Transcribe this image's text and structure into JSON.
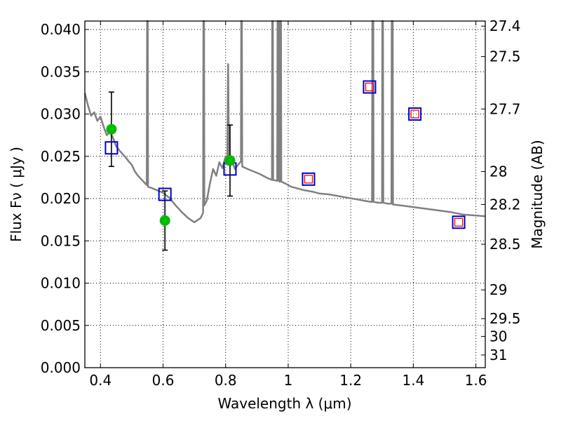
{
  "chart_data": {
    "type": "scatter",
    "xlabel": "Wavelength  λ (μm)",
    "ylabel": "Flux  Fν  ( μJy )",
    "ylabel_right": "Magnitude (AB)",
    "xlim": [
      0.35,
      1.63
    ],
    "ylim": [
      0.0,
      0.041
    ],
    "grid": true,
    "colors": {
      "spectrum": "#808080",
      "model_box": "#0000cc",
      "model_inner_box": "#ff0000",
      "photometry": "#00bb00",
      "errorbar": "#000000"
    },
    "x_ticks": [
      {
        "v": 0.4,
        "label": "0.4"
      },
      {
        "v": 0.6,
        "label": "0.6"
      },
      {
        "v": 0.8,
        "label": "0.8"
      },
      {
        "v": 1.0,
        "label": "1"
      },
      {
        "v": 1.2,
        "label": "1.2"
      },
      {
        "v": 1.4,
        "label": "1.4"
      },
      {
        "v": 1.6,
        "label": "1.6"
      }
    ],
    "y_ticks": [
      {
        "v": 0.0,
        "label": "0.000"
      },
      {
        "v": 0.005,
        "label": "0.005"
      },
      {
        "v": 0.01,
        "label": "0.010"
      },
      {
        "v": 0.015,
        "label": "0.015"
      },
      {
        "v": 0.02,
        "label": "0.020"
      },
      {
        "v": 0.025,
        "label": "0.025"
      },
      {
        "v": 0.03,
        "label": "0.030"
      },
      {
        "v": 0.035,
        "label": "0.035"
      },
      {
        "v": 0.04,
        "label": "0.040"
      }
    ],
    "magnitude_ticks": [
      {
        "label": "27.4",
        "flux": 0.0404
      },
      {
        "label": "27.5",
        "flux": 0.0368
      },
      {
        "label": "27.7",
        "flux": 0.0306
      },
      {
        "label": "28",
        "flux": 0.0232
      },
      {
        "label": "28.2",
        "flux": 0.0193
      },
      {
        "label": "28.5",
        "flux": 0.0146
      },
      {
        "label": "29",
        "flux": 0.0092
      },
      {
        "label": "29.5",
        "flux": 0.0058
      },
      {
        "label": "30",
        "flux": 0.0037
      },
      {
        "label": "31",
        "flux": 0.0015
      }
    ],
    "photometry": [
      {
        "x": 0.435,
        "y": 0.0282,
        "yerr": 0.0044
      },
      {
        "x": 0.606,
        "y": 0.0174,
        "yerr": 0.0035
      },
      {
        "x": 0.814,
        "y": 0.0245,
        "yerr": 0.0042
      }
    ],
    "model_boxes": [
      {
        "x": 0.435,
        "y": 0.026,
        "inner": false
      },
      {
        "x": 0.606,
        "y": 0.0205,
        "inner": false
      },
      {
        "x": 0.814,
        "y": 0.0235,
        "inner": false
      },
      {
        "x": 1.065,
        "y": 0.0223,
        "inner": true
      },
      {
        "x": 1.26,
        "y": 0.0332,
        "inner": true
      },
      {
        "x": 1.405,
        "y": 0.03,
        "inner": true
      },
      {
        "x": 1.545,
        "y": 0.0172,
        "inner": true
      }
    ],
    "spectrum": [
      [
        0.35,
        0.0325
      ],
      [
        0.36,
        0.031
      ],
      [
        0.37,
        0.0298
      ],
      [
        0.38,
        0.0302
      ],
      [
        0.39,
        0.0292
      ],
      [
        0.4,
        0.0297
      ],
      [
        0.41,
        0.0285
      ],
      [
        0.42,
        0.0275
      ],
      [
        0.43,
        0.0279
      ],
      [
        0.44,
        0.0272
      ],
      [
        0.45,
        0.0262
      ],
      [
        0.46,
        0.0257
      ],
      [
        0.47,
        0.0253
      ],
      [
        0.48,
        0.0249
      ],
      [
        0.49,
        0.0244
      ],
      [
        0.5,
        0.024
      ],
      [
        0.51,
        0.0232
      ],
      [
        0.52,
        0.0227
      ],
      [
        0.53,
        0.0223
      ],
      [
        0.54,
        0.0219
      ],
      [
        0.548,
        0.0216
      ],
      [
        0.549,
        0.041
      ],
      [
        0.551,
        0.041
      ],
      [
        0.552,
        0.0214
      ],
      [
        0.56,
        0.0213
      ],
      [
        0.58,
        0.021
      ],
      [
        0.6,
        0.0207
      ],
      [
        0.62,
        0.0201
      ],
      [
        0.64,
        0.0192
      ],
      [
        0.66,
        0.0184
      ],
      [
        0.68,
        0.0177
      ],
      [
        0.7,
        0.0172
      ],
      [
        0.72,
        0.0177
      ],
      [
        0.728,
        0.0183
      ],
      [
        0.729,
        0.041
      ],
      [
        0.731,
        0.041
      ],
      [
        0.732,
        0.0192
      ],
      [
        0.74,
        0.0198
      ],
      [
        0.75,
        0.0218
      ],
      [
        0.76,
        0.0235
      ],
      [
        0.77,
        0.0227
      ],
      [
        0.78,
        0.0243
      ],
      [
        0.79,
        0.0236
      ],
      [
        0.8,
        0.025
      ],
      [
        0.805,
        0.024
      ],
      [
        0.808,
        0.0359
      ],
      [
        0.811,
        0.024
      ],
      [
        0.82,
        0.0245
      ],
      [
        0.83,
        0.0235
      ],
      [
        0.84,
        0.024
      ],
      [
        0.849,
        0.0244
      ],
      [
        0.85,
        0.041
      ],
      [
        0.852,
        0.041
      ],
      [
        0.853,
        0.0238
      ],
      [
        0.87,
        0.0235
      ],
      [
        0.89,
        0.0232
      ],
      [
        0.91,
        0.0229
      ],
      [
        0.93,
        0.0225
      ],
      [
        0.948,
        0.0222
      ],
      [
        0.949,
        0.041
      ],
      [
        0.951,
        0.041
      ],
      [
        0.952,
        0.0222
      ],
      [
        0.965,
        0.0221
      ],
      [
        0.966,
        0.041
      ],
      [
        0.969,
        0.041
      ],
      [
        0.97,
        0.0221
      ],
      [
        0.973,
        0.022
      ],
      [
        0.974,
        0.041
      ],
      [
        0.977,
        0.041
      ],
      [
        0.978,
        0.022
      ],
      [
        0.99,
        0.0218
      ],
      [
        1.01,
        0.0214
      ],
      [
        1.03,
        0.0212
      ],
      [
        1.05,
        0.021
      ],
      [
        1.08,
        0.0208
      ],
      [
        1.1,
        0.0206
      ],
      [
        1.13,
        0.0205
      ],
      [
        1.16,
        0.0203
      ],
      [
        1.19,
        0.0201
      ],
      [
        1.22,
        0.0199
      ],
      [
        1.25,
        0.0197
      ],
      [
        1.268,
        0.0196
      ],
      [
        1.269,
        0.041
      ],
      [
        1.272,
        0.041
      ],
      [
        1.273,
        0.0196
      ],
      [
        1.29,
        0.0195
      ],
      [
        1.3,
        0.0195
      ],
      [
        1.301,
        0.041
      ],
      [
        1.303,
        0.041
      ],
      [
        1.304,
        0.0195
      ],
      [
        1.32,
        0.0194
      ],
      [
        1.33,
        0.0194
      ],
      [
        1.331,
        0.041
      ],
      [
        1.334,
        0.041
      ],
      [
        1.335,
        0.0193
      ],
      [
        1.36,
        0.0192
      ],
      [
        1.4,
        0.019
      ],
      [
        1.44,
        0.0188
      ],
      [
        1.48,
        0.0186
      ],
      [
        1.52,
        0.0184
      ],
      [
        1.56,
        0.0181
      ],
      [
        1.6,
        0.018
      ],
      [
        1.63,
        0.0179
      ]
    ]
  }
}
